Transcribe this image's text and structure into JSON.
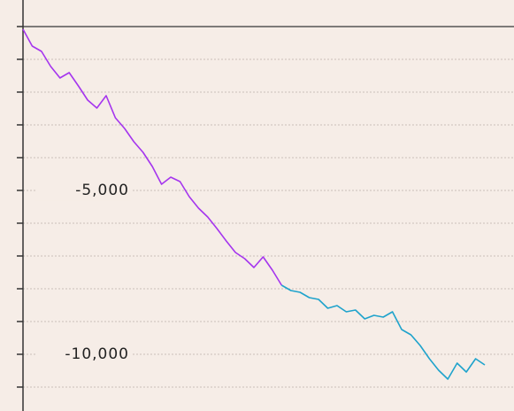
{
  "chart_data": {
    "type": "line",
    "ylim": [
      -11730,
      810
    ],
    "yticks": [
      {
        "value": -5000,
        "label": "-5,000"
      },
      {
        "value": -10000,
        "label": "-10,000"
      }
    ],
    "minor_yticks": [
      0,
      -1000,
      -2000,
      -3000,
      -4000,
      -5000,
      -6000,
      -7000,
      -8000,
      -9000,
      -10000,
      -11000
    ],
    "hline": 0,
    "grid": true,
    "series": [
      {
        "color": "#a535ee",
        "values": [
          -81,
          -595,
          -757,
          -1216,
          -1568,
          -1405,
          -1811,
          -2243,
          -2486,
          -2108,
          -2784,
          -3108,
          -3514,
          -3838,
          -4270,
          -4811,
          -4595,
          -4730,
          -5189,
          -5541,
          -5811,
          -6162,
          -6541,
          -6892,
          -7081,
          -7351,
          -7027,
          -7432,
          -7892,
          null,
          null,
          null,
          null,
          null,
          null,
          null,
          null,
          null,
          null,
          null,
          null,
          null,
          null,
          null,
          null,
          null,
          null,
          null,
          null,
          null,
          null
        ]
      },
      {
        "color": "#1fa3cc",
        "values": [
          null,
          null,
          null,
          null,
          null,
          null,
          null,
          null,
          null,
          null,
          null,
          null,
          null,
          null,
          null,
          null,
          null,
          null,
          null,
          null,
          null,
          null,
          null,
          null,
          null,
          null,
          null,
          null,
          -7892,
          -8054,
          -8108,
          -8270,
          -8324,
          -8595,
          -8514,
          -8703,
          -8649,
          -8919,
          -8811,
          -8865,
          -8703,
          -9243,
          -9405,
          -9730,
          -10135,
          -10486,
          -10757,
          -10270,
          -10541,
          -10135,
          -10324
        ]
      }
    ]
  }
}
